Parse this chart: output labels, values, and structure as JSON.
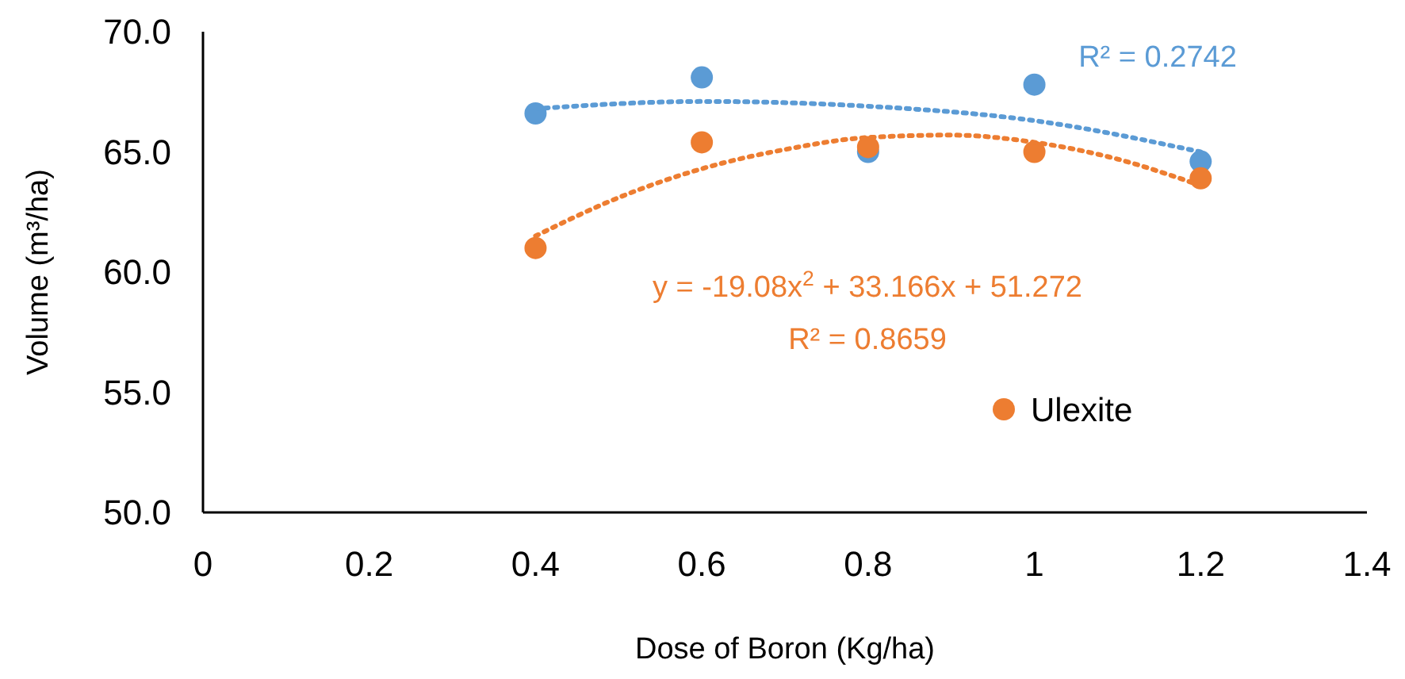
{
  "chart_data": {
    "type": "scatter",
    "xlabel": "Dose of Boron (Kg/ha)",
    "ylabel": "Volume (m³/ha)",
    "xlim": [
      0,
      1.4
    ],
    "xticks": [
      {
        "value": 0,
        "label": "0"
      },
      {
        "value": 0.2,
        "label": "0.2"
      },
      {
        "value": 0.4,
        "label": "0.4"
      },
      {
        "value": 0.6,
        "label": "0.6"
      },
      {
        "value": 0.8,
        "label": "0.8"
      },
      {
        "value": 1,
        "label": "1"
      },
      {
        "value": 1.2,
        "label": "1.2"
      },
      {
        "value": 1.4,
        "label": "1.4"
      }
    ],
    "ylim": [
      50,
      70
    ],
    "yticks": [
      {
        "value": 50,
        "label": "50.0"
      },
      {
        "value": 55,
        "label": "55.0"
      },
      {
        "value": 60,
        "label": "60.0"
      },
      {
        "value": 65,
        "label": "65.0"
      },
      {
        "value": 70,
        "label": "70.0"
      }
    ],
    "grid": false,
    "legend": "bottom",
    "series": [
      {
        "color": "#5b9bd5",
        "marker": "circle",
        "x": [
          0.4,
          0.6,
          0.8,
          1.0,
          1.2
        ],
        "values": [
          66.6,
          68.1,
          65.0,
          67.8,
          64.6
        ]
      },
      {
        "name": "Ulexite",
        "marker": "circle",
        "color": "#ed7d31",
        "x": [
          0.4,
          0.6,
          0.8,
          1.0,
          1.2
        ],
        "values": [
          61.0,
          65.4,
          65.2,
          65.0,
          63.9
        ]
      },
      {
        "type": "line",
        "line_style": "dotted",
        "color": "#5b9bd5",
        "x": [
          0.4,
          0.6,
          0.8,
          1.0,
          1.2
        ],
        "values": [
          66.8,
          67.1,
          66.9,
          66.3,
          65.0
        ]
      },
      {
        "type": "line",
        "line_style": "dotted",
        "color": "#ed7d31",
        "x": [
          0.4,
          0.5,
          0.6,
          0.7,
          0.8,
          0.9,
          1.0,
          1.1,
          1.2
        ],
        "values": [
          61.5,
          63.1,
          64.3,
          65.1,
          65.6,
          65.7,
          65.4,
          64.7,
          63.6
        ]
      }
    ],
    "annotations": [
      "R² = 0.2742",
      "y = -19.08x$^{2}$ + 33.166x + 51.272",
      "R² = 0.8659"
    ]
  }
}
